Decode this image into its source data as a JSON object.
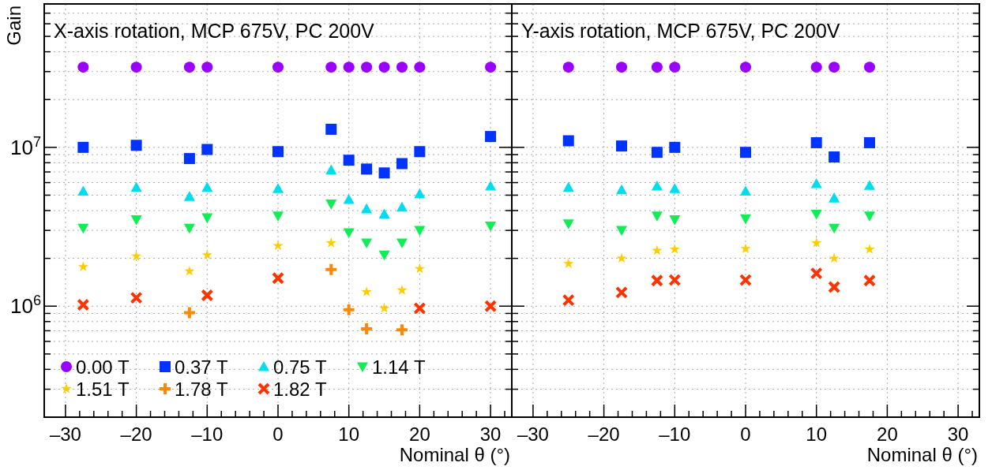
{
  "chart_data": [
    {
      "type": "scatter",
      "title": "X-axis rotation, MCP 675V, PC 200V",
      "xlabel": "Nominal  θ (°)",
      "ylabel": "Gain",
      "log": "y",
      "grid": true,
      "legend": "bottom left",
      "xlim": [
        -33,
        33
      ],
      "xticks": [
        {
          "value": -30,
          "label": "–30"
        },
        {
          "value": -28,
          "label": null
        },
        {
          "value": -26,
          "label": null
        },
        {
          "value": -24,
          "label": null
        },
        {
          "value": -22,
          "label": null
        },
        {
          "value": -20,
          "label": "–20"
        },
        {
          "value": -18,
          "label": null
        },
        {
          "value": -16,
          "label": null
        },
        {
          "value": -14,
          "label": null
        },
        {
          "value": -12,
          "label": null
        },
        {
          "value": -10,
          "label": "–10"
        },
        {
          "value": -8,
          "label": null
        },
        {
          "value": -6,
          "label": null
        },
        {
          "value": -4,
          "label": null
        },
        {
          "value": -2,
          "label": null
        },
        0,
        {
          "value": 2,
          "label": null
        },
        {
          "value": 4,
          "label": null
        },
        {
          "value": 6,
          "label": null
        },
        {
          "value": 8,
          "label": null
        },
        10,
        {
          "value": 12,
          "label": null
        },
        {
          "value": 14,
          "label": null
        },
        {
          "value": 16,
          "label": null
        },
        {
          "value": 18,
          "label": null
        },
        20,
        {
          "value": 22,
          "label": null
        },
        {
          "value": 24,
          "label": null
        },
        {
          "value": 26,
          "label": null
        },
        {
          "value": 28,
          "label": null
        },
        30,
        {
          "value": 32,
          "label": null
        }
      ],
      "ylim": [
        200000,
        80000000
      ],
      "yticks": [
        {
          "value": 200000,
          "label": null
        },
        {
          "value": 300000,
          "label": null
        },
        {
          "value": 400000,
          "label": null
        },
        {
          "value": 500000,
          "label": null
        },
        {
          "value": 600000,
          "label": null
        },
        {
          "value": 700000,
          "label": null
        },
        {
          "value": 800000,
          "label": null
        },
        {
          "value": 900000,
          "label": null
        },
        {
          "value": 1000000,
          "label": "10$^{6}$"
        },
        {
          "value": 2000000,
          "label": null
        },
        {
          "value": 3000000,
          "label": null
        },
        {
          "value": 4000000,
          "label": null
        },
        {
          "value": 5000000,
          "label": null
        },
        {
          "value": 6000000,
          "label": null
        },
        {
          "value": 7000000,
          "label": null
        },
        {
          "value": 8000000,
          "label": null
        },
        {
          "value": 9000000,
          "label": null
        },
        {
          "value": 10000000,
          "label": "10$^{7}$"
        },
        {
          "value": 20000000,
          "label": null
        },
        {
          "value": 30000000,
          "label": null
        },
        {
          "value": 40000000,
          "label": null
        },
        {
          "value": 50000000,
          "label": null
        },
        {
          "value": 60000000,
          "label": null
        },
        {
          "value": 70000000,
          "label": null
        },
        {
          "value": 80000000,
          "label": null
        }
      ],
      "x": [
        -27.5,
        -20,
        -12.5,
        -10,
        0,
        7.5,
        10,
        12.5,
        15,
        17.5,
        20,
        30
      ],
      "series": [
        {
          "name": "0.00 T",
          "color": "#9900ff",
          "marker": "circle",
          "values": [
            32000000,
            32000000,
            32000000,
            32000000,
            32000000,
            32000000,
            32000000,
            32000000,
            32000000,
            32000000,
            32000000,
            32000000
          ]
        },
        {
          "name": "0.37 T",
          "color": "#0033ff",
          "marker": "square",
          "values": [
            10000000,
            10300000,
            8500000,
            9700000,
            9400000,
            13000000,
            8300000,
            7300000,
            6900000,
            7900000,
            9400000,
            11700000
          ]
        },
        {
          "name": "0.75 T",
          "color": "#00ddee",
          "marker": "triangle",
          "values": [
            5300000,
            5600000,
            4900000,
            5600000,
            5500000,
            7200000,
            4700000,
            4100000,
            3800000,
            4200000,
            5100000,
            5700000
          ]
        },
        {
          "name": "1.14 T",
          "color": "#11ee55",
          "marker": "triangle-down",
          "values": [
            3100000,
            3500000,
            3100000,
            3600000,
            3700000,
            4400000,
            2900000,
            2500000,
            2100000,
            2500000,
            3000000,
            3200000
          ]
        },
        {
          "name": "1.51 T",
          "color": "#ffcc00",
          "marker": "star",
          "values": [
            1770000,
            2060000,
            1660000,
            2100000,
            2400000,
            2500000,
            null,
            1230000,
            970000,
            1260000,
            1720000,
            null
          ]
        },
        {
          "name": "1.78 T",
          "color": "#ff8800",
          "marker": "plus",
          "values": [
            null,
            null,
            910000,
            null,
            null,
            1700000,
            950000,
            720000,
            null,
            710000,
            null,
            null
          ]
        },
        {
          "name": "1.82 T",
          "color": "#ff3300",
          "marker": "cross",
          "values": [
            1020000,
            1130000,
            null,
            1170000,
            1500000,
            null,
            null,
            null,
            null,
            null,
            970000,
            1000000
          ]
        }
      ]
    },
    {
      "type": "scatter",
      "title": "Y-axis rotation, MCP 675V, PC 200V",
      "xlabel": "Nominal  θ (°)",
      "log": "y",
      "grid": true,
      "tick_labels": "x",
      "xlim": [
        -33,
        33
      ],
      "xticks": [
        {
          "value": -30,
          "label": "–30"
        },
        {
          "value": -28,
          "label": null
        },
        {
          "value": -26,
          "label": null
        },
        {
          "value": -24,
          "label": null
        },
        {
          "value": -22,
          "label": null
        },
        {
          "value": -20,
          "label": "–20"
        },
        {
          "value": -18,
          "label": null
        },
        {
          "value": -16,
          "label": null
        },
        {
          "value": -14,
          "label": null
        },
        {
          "value": -12,
          "label": null
        },
        {
          "value": -10,
          "label": "–10"
        },
        {
          "value": -8,
          "label": null
        },
        {
          "value": -6,
          "label": null
        },
        {
          "value": -4,
          "label": null
        },
        {
          "value": -2,
          "label": null
        },
        0,
        {
          "value": 2,
          "label": null
        },
        {
          "value": 4,
          "label": null
        },
        {
          "value": 6,
          "label": null
        },
        {
          "value": 8,
          "label": null
        },
        10,
        {
          "value": 12,
          "label": null
        },
        {
          "value": 14,
          "label": null
        },
        {
          "value": 16,
          "label": null
        },
        {
          "value": 18,
          "label": null
        },
        20,
        {
          "value": 22,
          "label": null
        },
        {
          "value": 24,
          "label": null
        },
        {
          "value": 26,
          "label": null
        },
        {
          "value": 28,
          "label": null
        },
        30,
        {
          "value": 32,
          "label": null
        }
      ],
      "ylim": [
        200000,
        80000000
      ],
      "yticks": [
        {
          "value": 200000,
          "label": null
        },
        {
          "value": 300000,
          "label": null
        },
        {
          "value": 400000,
          "label": null
        },
        {
          "value": 500000,
          "label": null
        },
        {
          "value": 600000,
          "label": null
        },
        {
          "value": 700000,
          "label": null
        },
        {
          "value": 800000,
          "label": null
        },
        {
          "value": 900000,
          "label": null
        },
        {
          "value": 1000000,
          "label": null
        },
        {
          "value": 2000000,
          "label": null
        },
        {
          "value": 3000000,
          "label": null
        },
        {
          "value": 4000000,
          "label": null
        },
        {
          "value": 5000000,
          "label": null
        },
        {
          "value": 6000000,
          "label": null
        },
        {
          "value": 7000000,
          "label": null
        },
        {
          "value": 8000000,
          "label": null
        },
        {
          "value": 9000000,
          "label": null
        },
        {
          "value": 10000000,
          "label": null
        },
        {
          "value": 20000000,
          "label": null
        },
        {
          "value": 30000000,
          "label": null
        },
        {
          "value": 40000000,
          "label": null
        },
        {
          "value": 50000000,
          "label": null
        },
        {
          "value": 60000000,
          "label": null
        },
        {
          "value": 70000000,
          "label": null
        },
        {
          "value": 80000000,
          "label": null
        }
      ],
      "x": [
        -25,
        -17.5,
        -12.5,
        -10,
        0,
        10,
        12.5,
        17.5
      ],
      "series": [
        {
          "color": "#9900ff",
          "marker": "circle",
          "values": [
            32000000,
            32000000,
            32000000,
            32000000,
            32000000,
            32000000,
            32000000,
            32000000
          ]
        },
        {
          "color": "#0033ff",
          "marker": "square",
          "values": [
            11000000,
            10200000,
            9300000,
            10000000,
            9300000,
            10700000,
            8700000,
            10700000
          ]
        },
        {
          "color": "#00ddee",
          "marker": "triangle",
          "values": [
            5600000,
            5400000,
            5700000,
            5500000,
            5300000,
            5900000,
            4800000,
            5750000
          ]
        },
        {
          "color": "#11ee55",
          "marker": "triangle-down",
          "values": [
            3300000,
            3000000,
            3700000,
            3500000,
            3550000,
            3800000,
            3100000,
            3700000
          ]
        },
        {
          "color": "#ffcc00",
          "marker": "star",
          "values": [
            1850000,
            2000000,
            2240000,
            2280000,
            2300000,
            2500000,
            2000000,
            2280000
          ]
        },
        {
          "color": "#ff3300",
          "marker": "cross",
          "values": [
            1090000,
            1220000,
            1450000,
            1460000,
            1460000,
            1610000,
            1320000,
            1450000
          ]
        }
      ]
    }
  ]
}
